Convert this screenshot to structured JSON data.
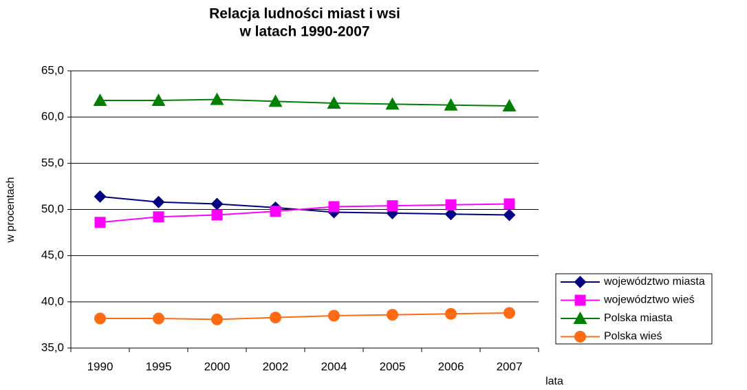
{
  "chart_data": {
    "type": "line",
    "title": [
      "Relacja ludności miast i wsi",
      "w latach 1990-2007"
    ],
    "x_label": "lata",
    "y_label": "w procentach",
    "categories": [
      "1990",
      "1995",
      "2000",
      "2002",
      "2004",
      "2005",
      "2006",
      "2007"
    ],
    "series": [
      {
        "name": "województwo miasta",
        "color": "#000080",
        "marker": "diamond",
        "values": [
          51.4,
          50.8,
          50.6,
          50.2,
          49.7,
          49.6,
          49.5,
          49.4
        ]
      },
      {
        "name": "województwo wieś",
        "color": "#ff00ff",
        "marker": "square",
        "values": [
          48.6,
          49.2,
          49.4,
          49.8,
          50.3,
          50.4,
          50.5,
          50.6
        ]
      },
      {
        "name": "Polska miasta",
        "color": "#008000",
        "marker": "triangle",
        "values": [
          61.8,
          61.8,
          61.9,
          61.7,
          61.5,
          61.4,
          61.3,
          61.2
        ]
      },
      {
        "name": "Polska wieś",
        "color": "#ff6a13",
        "marker": "circle",
        "values": [
          38.2,
          38.2,
          38.1,
          38.3,
          38.5,
          38.6,
          38.7,
          38.8
        ]
      }
    ],
    "ylim": [
      35,
      65
    ],
    "yticks": [
      {
        "value": 35,
        "label": "35,0"
      },
      {
        "value": 40,
        "label": "40,0"
      },
      {
        "value": 45,
        "label": "45,0"
      },
      {
        "value": 50,
        "label": "50,0"
      },
      {
        "value": 55,
        "label": "55,0"
      },
      {
        "value": 60,
        "label": "60,0"
      },
      {
        "value": 65,
        "label": "65,0"
      }
    ],
    "grid": true,
    "legend": "right"
  }
}
